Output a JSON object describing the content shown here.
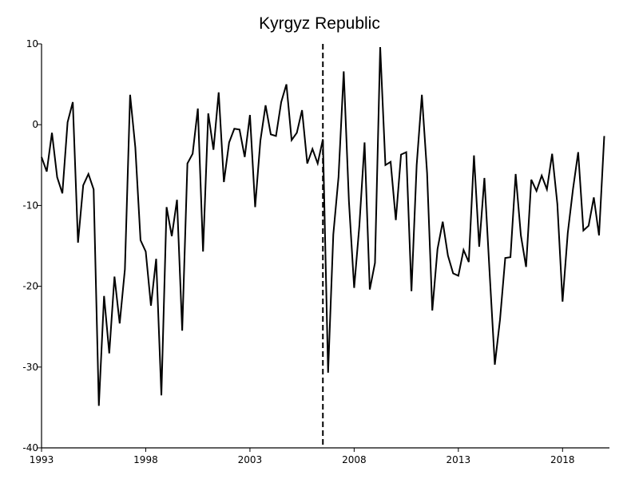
{
  "chart_data": {
    "type": "line",
    "title": "Kyrgyz Republic",
    "xlabel": "",
    "ylabel": "",
    "xlim": [
      1993.0,
      2020.25
    ],
    "ylim": [
      -40,
      10
    ],
    "x_ticks": [
      1993,
      1998,
      2003,
      2008,
      2013,
      2018
    ],
    "y_ticks": [
      10,
      0,
      -10,
      -20,
      -30,
      -40
    ],
    "vertical_marker": {
      "x": 2006.5,
      "style": "dashed"
    },
    "grid": false,
    "series": [
      {
        "x_start": 1993.0,
        "x_step": 0.25,
        "values": [
          -4.0,
          -5.8,
          -1.0,
          -6.5,
          -8.5,
          0.3,
          2.8,
          -14.6,
          -7.5,
          -6.1,
          -8.0,
          -34.8,
          -21.2,
          -28.3,
          -18.8,
          -24.6,
          -17.9,
          3.7,
          -2.8,
          -14.3,
          -15.7,
          -22.4,
          -16.6,
          -33.5,
          -10.2,
          -13.8,
          -9.3,
          -25.5,
          -4.8,
          -3.6,
          2.0,
          -15.7,
          1.4,
          -3.1,
          4.0,
          -7.1,
          -2.2,
          -0.5,
          -0.6,
          -4.0,
          1.2,
          -10.2,
          -2.0,
          2.4,
          -1.2,
          -1.4,
          2.8,
          5.0,
          -1.9,
          -1.0,
          1.8,
          -4.8,
          -3.0,
          -4.8,
          -1.8,
          -30.7,
          -13.6,
          -6.5,
          6.6,
          -9.5,
          -20.2,
          -12.5,
          -2.2,
          -20.4,
          -17.1,
          9.6,
          -5.0,
          -4.6,
          -11.8,
          -3.7,
          -3.4,
          -20.6,
          -5.0,
          3.7,
          -6.0,
          -23.0,
          -15.4,
          -12.0,
          -16.2,
          -18.4,
          -18.7,
          -15.5,
          -17.0,
          -3.8,
          -15.1,
          -6.6,
          -18.3,
          -29.7,
          -24.1,
          -16.5,
          -16.4,
          -6.1,
          -13.7,
          -17.6,
          -6.8,
          -8.2,
          -6.3,
          -8.0,
          -3.6,
          -9.8,
          -21.9,
          -13.4,
          -8.0,
          -3.4,
          -13.1,
          -12.5,
          -9.0,
          -13.7,
          -1.4
        ]
      }
    ]
  }
}
